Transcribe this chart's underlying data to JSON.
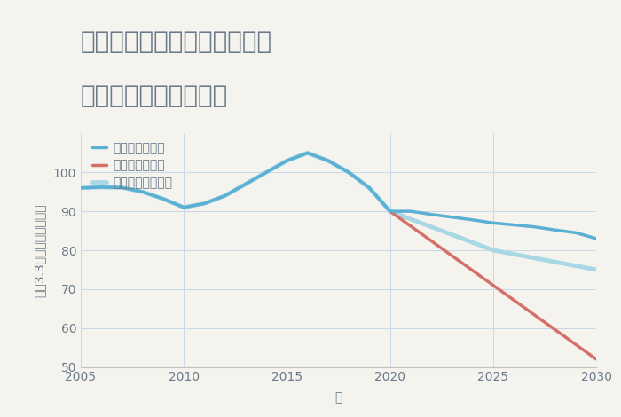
{
  "title_line1": "兵庫県神戸市垂水区御霊町の",
  "title_line2": "中古戸建ての価格推移",
  "xlabel": "年",
  "ylabel": "坪（3.3㎡）単価（万円）",
  "background_color": "#f5f3ee",
  "plot_bg_color": "#f5f3ee",
  "grid_color": "#c8d8e8",
  "xlim": [
    2005,
    2030
  ],
  "ylim": [
    50,
    110
  ],
  "yticks": [
    50,
    60,
    70,
    80,
    90,
    100
  ],
  "xticks": [
    2005,
    2010,
    2015,
    2020,
    2025,
    2030
  ],
  "good_scenario": {
    "x": [
      2005,
      2006,
      2007,
      2008,
      2009,
      2010,
      2011,
      2012,
      2013,
      2014,
      2015,
      2016,
      2017,
      2018,
      2019,
      2020,
      2021,
      2022,
      2023,
      2024,
      2025,
      2026,
      2027,
      2028,
      2029,
      2030
    ],
    "y": [
      96,
      96.2,
      96.1,
      95.0,
      93.2,
      91.0,
      92.0,
      94.0,
      97.0,
      100.0,
      103.0,
      105.0,
      103.0,
      100.0,
      96.0,
      90.0,
      90.0,
      89.2,
      88.5,
      87.8,
      87.0,
      86.5,
      86.0,
      85.2,
      84.5,
      83.0
    ],
    "color": "#5aafd4",
    "linewidth": 2.5,
    "label": "グッドシナリオ"
  },
  "bad_scenario": {
    "x": [
      2020,
      2030
    ],
    "y": [
      90.0,
      52.0
    ],
    "color": "#d4706a",
    "linewidth": 2.5,
    "label": "バッドシナリオ"
  },
  "normal_scenario": {
    "x": [
      2005,
      2006,
      2007,
      2008,
      2009,
      2010,
      2011,
      2012,
      2013,
      2014,
      2015,
      2016,
      2017,
      2018,
      2019,
      2020,
      2021,
      2022,
      2023,
      2024,
      2025,
      2026,
      2027,
      2028,
      2029,
      2030
    ],
    "y": [
      96,
      96.2,
      96.1,
      95.0,
      93.2,
      91.0,
      92.0,
      94.0,
      97.0,
      100.0,
      103.0,
      105.0,
      103.0,
      100.0,
      96.0,
      90.0,
      88.0,
      86.0,
      84.0,
      82.0,
      80.0,
      79.0,
      78.0,
      77.0,
      76.0,
      75.0
    ],
    "color": "#a8d8e6",
    "linewidth": 3.5,
    "label": "ノーマルシナリオ"
  },
  "title_color": "#6a7a8a",
  "axis_color": "#6a7a8a",
  "tick_color": "#6a7a8a",
  "legend_fontsize": 10,
  "title_fontsize": 20,
  "axis_label_fontsize": 10
}
